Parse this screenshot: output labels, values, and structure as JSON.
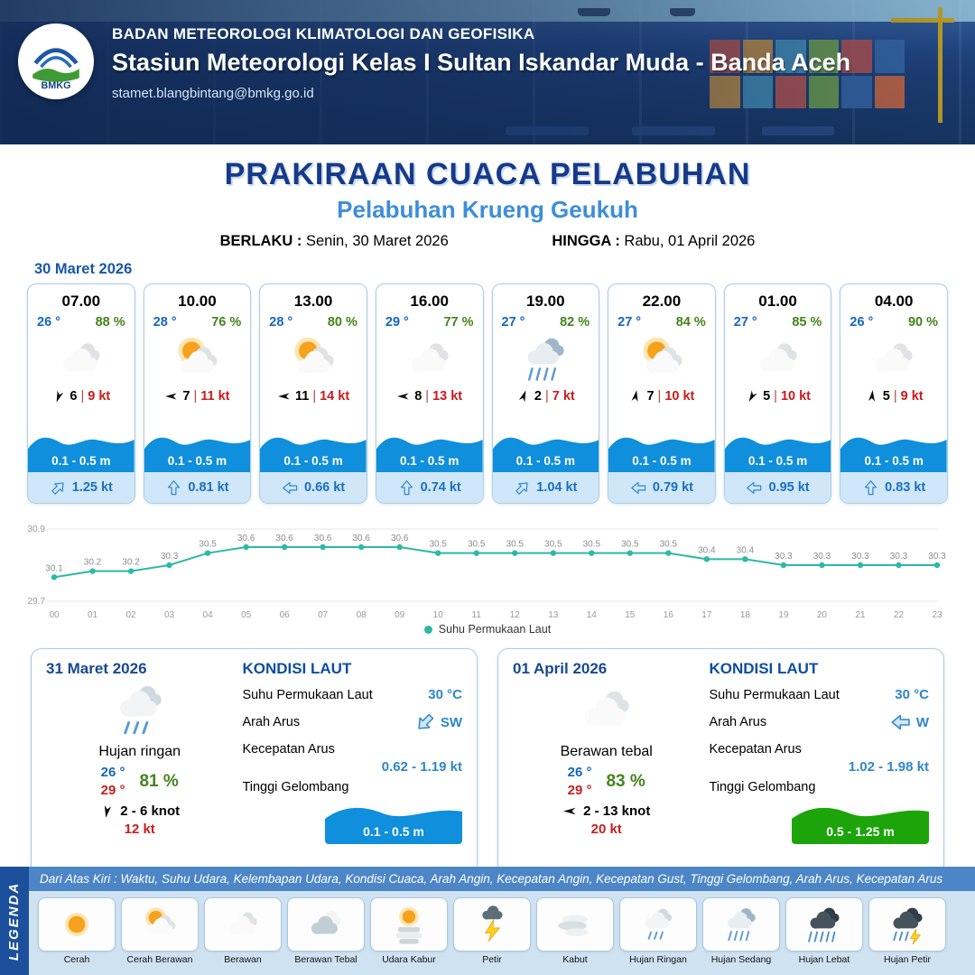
{
  "header": {
    "logo_text": "BMKG",
    "agency": "BADAN METEOROLOGI KLIMATOLOGI DAN GEOFISIKA",
    "station": "Stasiun Meteorologi Kelas I Sultan Iskandar Muda - Banda Aceh",
    "email": "stamet.blangbintang@bmkg.go.id"
  },
  "title": {
    "main": "PRAKIRAAN CUACA PELABUHAN",
    "subtitle": "Pelabuhan Krueng Geukuh",
    "valid_label": "BERLAKU :",
    "valid_value": "Senin, 30 Maret 2026",
    "until_label": "HINGGA :",
    "until_value": "Rabu, 01 April 2026"
  },
  "forecast_date": "30 Maret 2026",
  "labels": {
    "sep": "|"
  },
  "forecast_cards": [
    {
      "time": "07.00",
      "temp": "26 °",
      "humidity": "88 %",
      "icon": "berawan",
      "wind_dir_deg": 200,
      "wind": "6",
      "gust": "9 kt",
      "wave": "0.1 - 0.5 m",
      "current_dir_deg": 45,
      "current": "1.25 kt"
    },
    {
      "time": "10.00",
      "temp": "28 °",
      "humidity": "76 %",
      "icon": "cerah-berawan",
      "wind_dir_deg": 270,
      "wind": "7",
      "gust": "11 kt",
      "wave": "0.1 - 0.5 m",
      "current_dir_deg": 0,
      "current": "0.81 kt"
    },
    {
      "time": "13.00",
      "temp": "28 °",
      "humidity": "80 %",
      "icon": "cerah-berawan",
      "wind_dir_deg": 270,
      "wind": "11",
      "gust": "14 kt",
      "wave": "0.1 - 0.5 m",
      "current_dir_deg": 270,
      "current": "0.66 kt"
    },
    {
      "time": "16.00",
      "temp": "29 °",
      "humidity": "77 %",
      "icon": "berawan",
      "wind_dir_deg": 270,
      "wind": "8",
      "gust": "13 kt",
      "wave": "0.1 - 0.5 m",
      "current_dir_deg": 0,
      "current": "0.74 kt"
    },
    {
      "time": "19.00",
      "temp": "27 °",
      "humidity": "82 %",
      "icon": "hujan-sedang",
      "wind_dir_deg": 20,
      "wind": "2",
      "gust": "7 kt",
      "wave": "0.1 - 0.5 m",
      "current_dir_deg": 45,
      "current": "1.04 kt"
    },
    {
      "time": "22.00",
      "temp": "27 °",
      "humidity": "84 %",
      "icon": "cerah-berawan",
      "wind_dir_deg": 10,
      "wind": "7",
      "gust": "10 kt",
      "wave": "0.1 - 0.5 m",
      "current_dir_deg": 270,
      "current": "0.79 kt"
    },
    {
      "time": "01.00",
      "temp": "27 °",
      "humidity": "85 %",
      "icon": "berawan",
      "wind_dir_deg": 210,
      "wind": "5",
      "gust": "10 kt",
      "wave": "0.1 - 0.5 m",
      "current_dir_deg": 270,
      "current": "0.95 kt"
    },
    {
      "time": "04.00",
      "temp": "26 °",
      "humidity": "90 %",
      "icon": "berawan",
      "wind_dir_deg": 5,
      "wind": "5",
      "gust": "9 kt",
      "wave": "0.1 - 0.5 m",
      "current_dir_deg": 0,
      "current": "0.83 kt"
    }
  ],
  "chart_data": {
    "type": "line",
    "x": [
      "00",
      "01",
      "02",
      "03",
      "04",
      "05",
      "06",
      "07",
      "08",
      "09",
      "10",
      "11",
      "12",
      "13",
      "14",
      "15",
      "16",
      "17",
      "18",
      "19",
      "20",
      "21",
      "22",
      "23"
    ],
    "values": [
      30.1,
      30.2,
      30.2,
      30.3,
      30.5,
      30.6,
      30.6,
      30.6,
      30.6,
      30.6,
      30.5,
      30.5,
      30.5,
      30.5,
      30.5,
      30.5,
      30.5,
      30.4,
      30.4,
      30.3,
      30.3,
      30.3,
      30.3,
      30.3
    ],
    "title": "",
    "xlabel": "",
    "ylabel": "",
    "ylim": [
      29.7,
      30.9
    ],
    "legend": "Suhu Permukaan Laut",
    "legend_position": "bottom",
    "grid": true,
    "color": "#2cb9a6"
  },
  "daily_cards": [
    {
      "date": "31 Maret 2026",
      "icon": "hujan-ringan",
      "condition": "Hujan ringan",
      "temp_min": "26 °",
      "temp_max": "29 °",
      "humidity": "81 %",
      "wind_dir_deg": 190,
      "wind_range": "2 - 6 knot",
      "gust": "12 kt",
      "sea": {
        "title": "KONDISI LAUT",
        "sst_label": "Suhu Permukaan Laut",
        "sst": "30 °C",
        "current_dir_label": "Arah Arus",
        "current_dir_text": "SW",
        "current_dir_deg": 225,
        "current_speed_label": "Kecepatan Arus",
        "current_speed": "0.62 - 1.19 kt",
        "wave_label": "Tinggi Gelombang",
        "wave": "0.1 - 0.5 m",
        "wave_color": "#0f8fdc"
      }
    },
    {
      "date": "01 April 2026",
      "icon": "berawan",
      "condition": "Berawan tebal",
      "temp_min": "26 °",
      "temp_max": "29 °",
      "humidity": "83 %",
      "wind_dir_deg": 270,
      "wind_range": "2 - 13 knot",
      "gust": "20 kt",
      "sea": {
        "title": "KONDISI LAUT",
        "sst_label": "Suhu Permukaan Laut",
        "sst": "30 °C",
        "current_dir_label": "Arah Arus",
        "current_dir_text": "W",
        "current_dir_deg": 270,
        "current_speed_label": "Kecepatan Arus",
        "current_speed": "1.02 - 1.98 kt",
        "wave_label": "Tinggi Gelombang",
        "wave": "0.5 - 1.25 m",
        "wave_color": "#1ca40a"
      }
    }
  ],
  "legend": {
    "title": "LEGENDA",
    "note": "Dari Atas Kiri : Waktu, Suhu Udara, Kelembapan Udara, Kondisi Cuaca, Arah Angin, Kecepatan Angin, Kecepatan Gust, Tinggi Gelombang, Arah Arus, Kecepatan Arus",
    "items": [
      {
        "icon": "cerah",
        "label": "Cerah"
      },
      {
        "icon": "cerah-berawan",
        "label": "Cerah Berawan"
      },
      {
        "icon": "berawan",
        "label": "Berawan"
      },
      {
        "icon": "berawan-tebal",
        "label": "Berawan Tebal"
      },
      {
        "icon": "udara-kabur",
        "label": "Udara Kabur"
      },
      {
        "icon": "petir",
        "label": "Petir"
      },
      {
        "icon": "kabut",
        "label": "Kabut"
      },
      {
        "icon": "hujan-ringan",
        "label": "Hujan Ringan"
      },
      {
        "icon": "hujan-sedang",
        "label": "Hujan Sedang"
      },
      {
        "icon": "hujan-lebat",
        "label": "Hujan Lebat"
      },
      {
        "icon": "hujan-petir",
        "label": "Hujan Petir"
      }
    ]
  }
}
